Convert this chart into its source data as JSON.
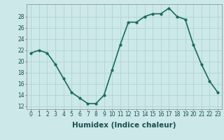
{
  "x": [
    0,
    1,
    2,
    3,
    4,
    5,
    6,
    7,
    8,
    9,
    10,
    11,
    12,
    13,
    14,
    15,
    16,
    17,
    18,
    19,
    20,
    21,
    22,
    23
  ],
  "y": [
    21.5,
    22,
    21.5,
    19.5,
    17,
    14.5,
    13.5,
    12.5,
    12.5,
    14,
    18.5,
    23,
    27,
    27,
    28,
    28.5,
    28.5,
    29.5,
    28,
    27.5,
    23,
    19.5,
    16.5,
    14.5
  ],
  "line_color": "#1a6b5a",
  "marker": "o",
  "marker_size": 2,
  "background_color": "#cce8e8",
  "grid_color": "#b0d4d4",
  "xlabel": "Humidex (Indice chaleur)",
  "ylabel": "",
  "title": "",
  "xlim": [
    -0.5,
    23.5
  ],
  "ylim": [
    11.5,
    30.2
  ],
  "yticks": [
    12,
    14,
    16,
    18,
    20,
    22,
    24,
    26,
    28
  ],
  "xticks": [
    0,
    1,
    2,
    3,
    4,
    5,
    6,
    7,
    8,
    9,
    10,
    11,
    12,
    13,
    14,
    15,
    16,
    17,
    18,
    19,
    20,
    21,
    22,
    23
  ],
  "xtick_labels": [
    "0",
    "1",
    "2",
    "3",
    "4",
    "5",
    "6",
    "7",
    "8",
    "9",
    "10",
    "11",
    "12",
    "13",
    "14",
    "15",
    "16",
    "17",
    "18",
    "19",
    "20",
    "21",
    "22",
    "23"
  ],
  "tick_fontsize": 5.5,
  "xlabel_fontsize": 7.5,
  "line_width": 1.2,
  "ax_color": "#555555",
  "spine_color": "#888888"
}
